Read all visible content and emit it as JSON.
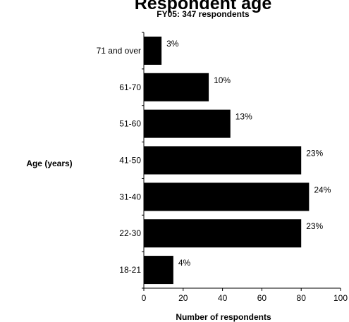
{
  "chart_data": {
    "type": "bar",
    "orientation": "horizontal",
    "title": "Respondent age",
    "subtitle": "FY05: 347 respondents",
    "xlabel": "Number of respondents",
    "ylabel": "Age (years)",
    "categories": [
      "71 and over",
      "61-70",
      "51-60",
      "41-50",
      "31-40",
      "22-30",
      "18-21"
    ],
    "values": [
      9,
      33,
      44,
      80,
      84,
      80,
      15
    ],
    "data_labels": [
      "3%",
      "10%",
      "13%",
      "23%",
      "24%",
      "23%",
      "4%"
    ],
    "xlim": [
      0,
      100
    ],
    "xticks": [
      0,
      20,
      40,
      60,
      80,
      100
    ],
    "grid": false,
    "bar_color": "#000000"
  }
}
